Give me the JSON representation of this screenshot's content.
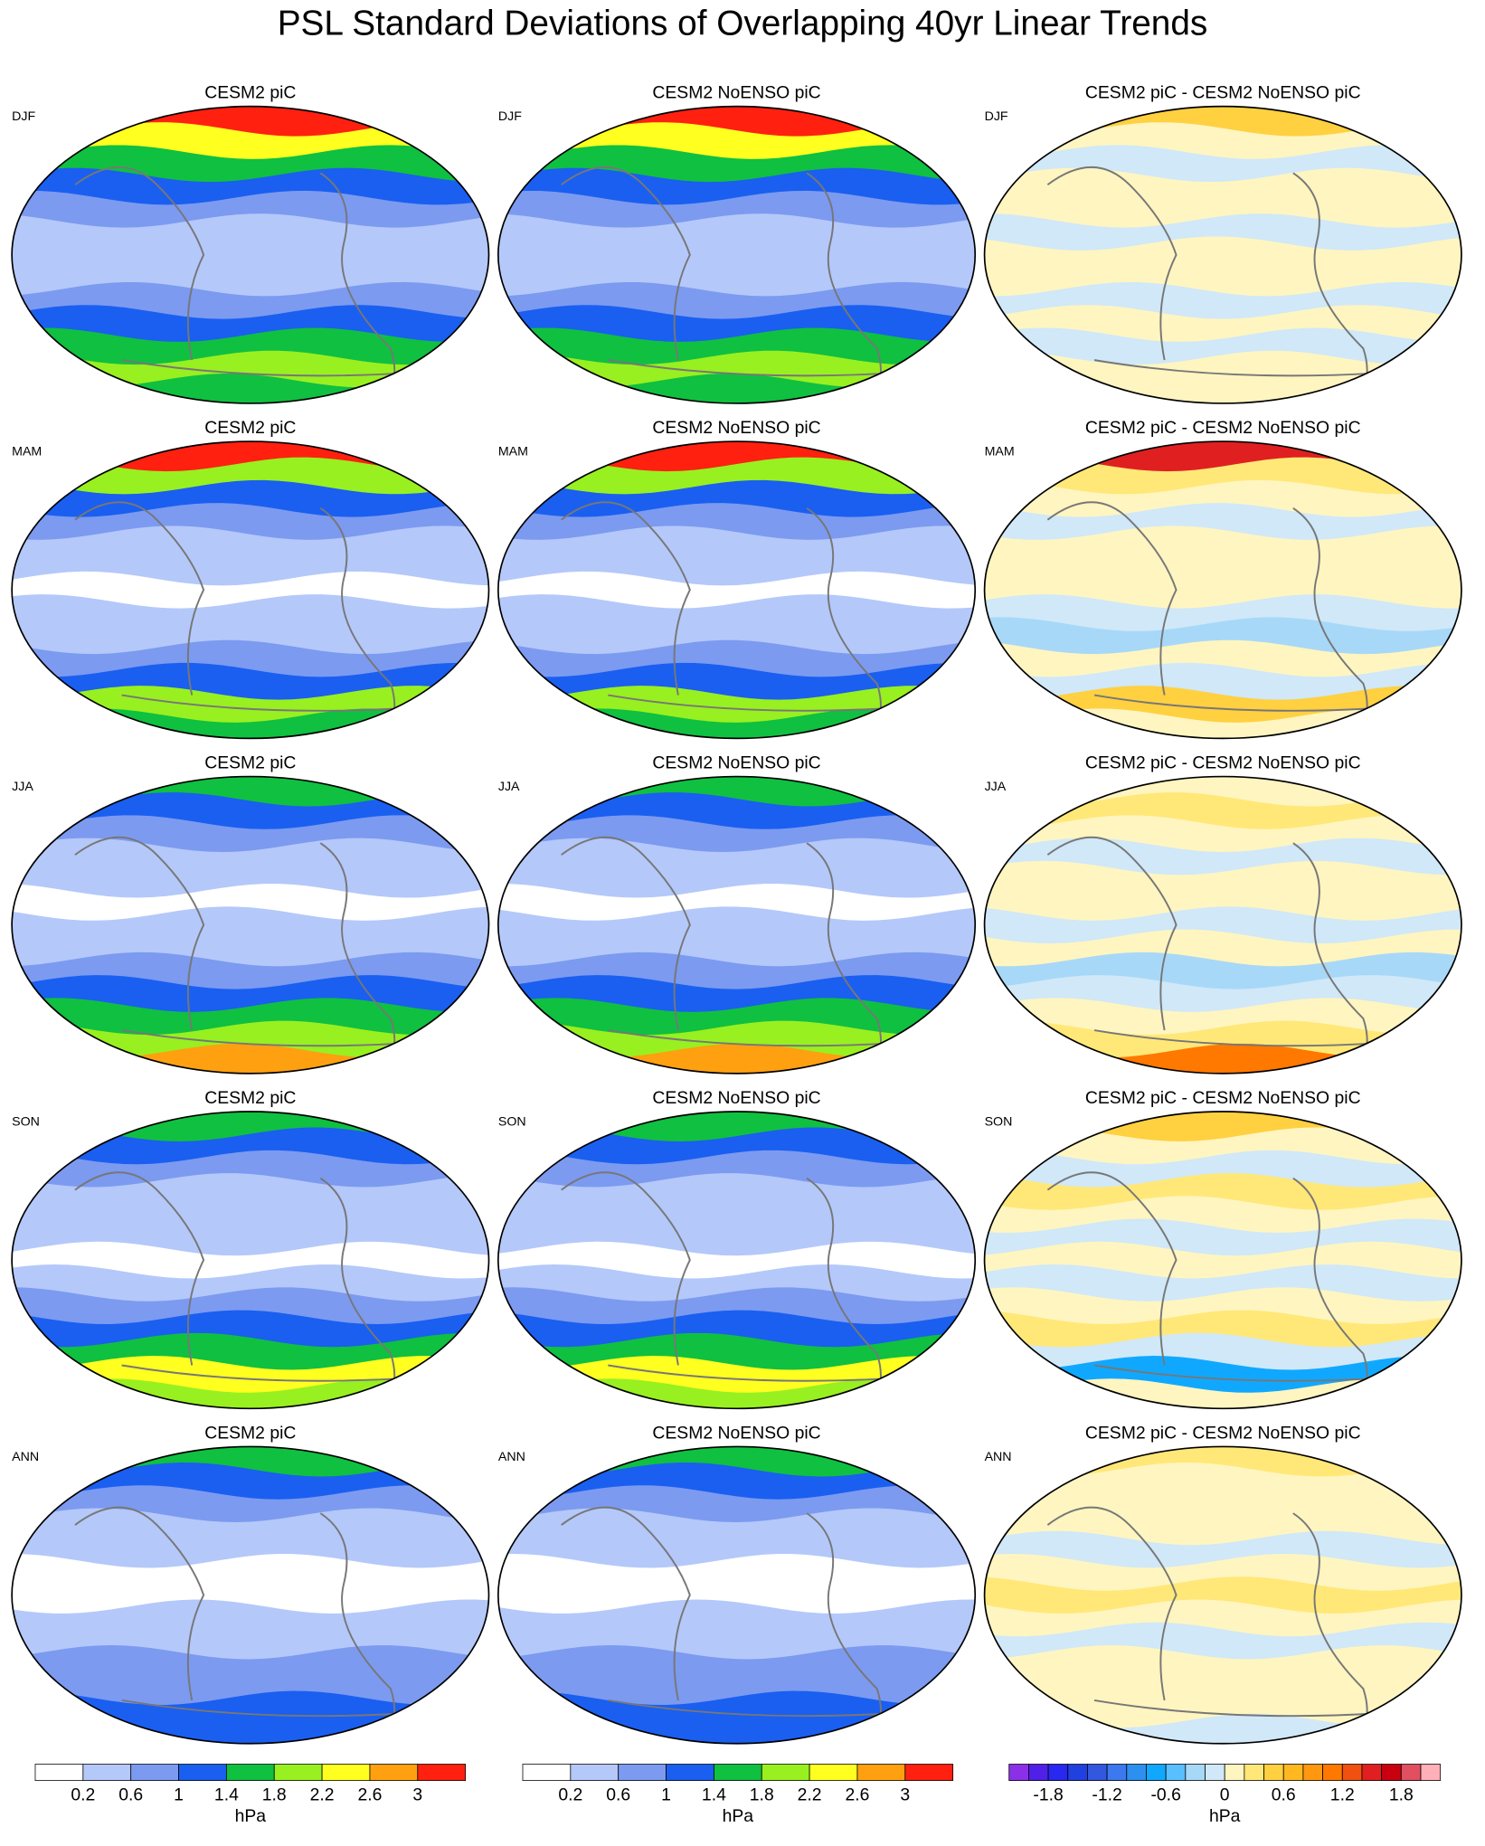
{
  "title": "PSL Standard Deviations of Overlapping 40yr Linear Trends",
  "panels": [
    {
      "title": "CESM2 piC",
      "season": "DJF"
    },
    {
      "title": "CESM2 NoENSO piC",
      "season": "DJF"
    },
    {
      "title": "CESM2 piC - CESM2 NoENSO piC",
      "season": "DJF"
    },
    {
      "title": "CESM2 piC",
      "season": "MAM"
    },
    {
      "title": "CESM2 NoENSO piC",
      "season": "MAM"
    },
    {
      "title": "CESM2 piC - CESM2 NoENSO piC",
      "season": "MAM"
    },
    {
      "title": "CESM2 piC",
      "season": "JJA"
    },
    {
      "title": "CESM2 NoENSO piC",
      "season": "JJA"
    },
    {
      "title": "CESM2 piC - CESM2 NoENSO piC",
      "season": "JJA"
    },
    {
      "title": "CESM2 piC",
      "season": "SON"
    },
    {
      "title": "CESM2 NoENSO piC",
      "season": "SON"
    },
    {
      "title": "CESM2 piC - CESM2 NoENSO piC",
      "season": "SON"
    },
    {
      "title": "CESM2 piC",
      "season": "ANN"
    },
    {
      "title": "CESM2 NoENSO piC",
      "season": "ANN"
    },
    {
      "title": "CESM2 piC - CESM2 NoENSO piC",
      "season": "ANN"
    }
  ],
  "colorbars": [
    {
      "colors": [
        "#ffffff",
        "#b4c8fa",
        "#7c9af0",
        "#1a5ff0",
        "#10c040",
        "#98f020",
        "#ffff20",
        "#ffa010",
        "#ff2010"
      ],
      "lim": [
        -0.2,
        3.4
      ],
      "ticks": [
        0.2,
        0.6,
        1,
        1.4,
        1.8,
        2.2,
        2.6,
        3
      ],
      "unit": "hPa"
    },
    {
      "colors": [
        "#ffffff",
        "#b4c8fa",
        "#7c9af0",
        "#1a5ff0",
        "#10c040",
        "#98f020",
        "#ffff20",
        "#ffa010",
        "#ff2010"
      ],
      "lim": [
        -0.2,
        3.4
      ],
      "ticks": [
        0.2,
        0.6,
        1,
        1.4,
        1.8,
        2.2,
        2.6,
        3
      ],
      "unit": "hPa"
    },
    {
      "colors": [
        "#8c30e8",
        "#5020e8",
        "#2828f0",
        "#2040e0",
        "#3258e0",
        "#3c78f0",
        "#2c90f0",
        "#10a8ff",
        "#58c0ff",
        "#a8d8f8",
        "#d0e8f8",
        "#fff5c0",
        "#ffe878",
        "#ffd040",
        "#ffb820",
        "#ff9810",
        "#ff7800",
        "#f05010",
        "#e02020",
        "#c80010",
        "#e05060",
        "#ffb0b8"
      ],
      "lim": [
        -2.2,
        2.2
      ],
      "ticks": [
        -1.8,
        -1.2,
        -0.6,
        0,
        0.6,
        1.2,
        1.8
      ],
      "unit": "hPa"
    }
  ]
}
